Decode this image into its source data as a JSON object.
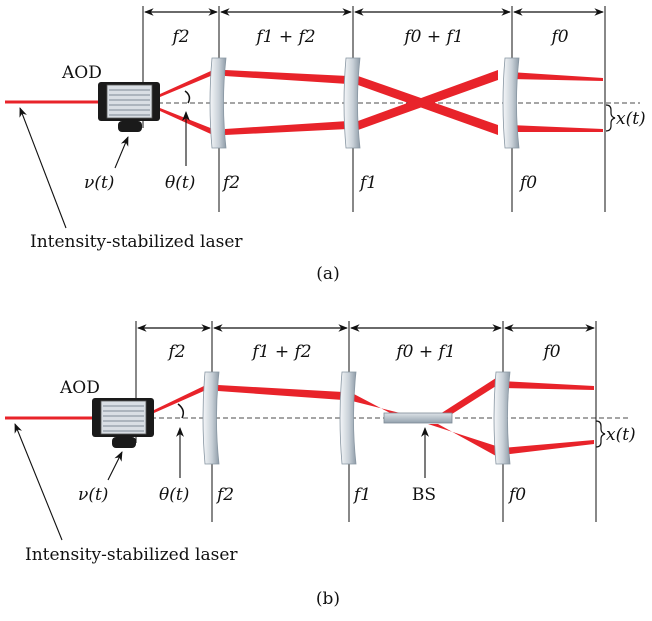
{
  "panels": [
    {
      "id": "a",
      "caption": "(a)",
      "aod_label": "AOD",
      "laser_label": "Intensity-stabilized laser",
      "frequency_label": "ν(t)",
      "angle_label": "θ(t)",
      "displacement_label": "x(t)",
      "spacing_labels": [
        "f2",
        "f1 + f2",
        "f0 + f1",
        "f0"
      ],
      "lens_labels": [
        "f2",
        "f1",
        "f0"
      ]
    },
    {
      "id": "b",
      "caption": "(b)",
      "aod_label": "AOD",
      "laser_label": "Intensity-stabilized laser",
      "frequency_label": "ν(t)",
      "angle_label": "θ(t)",
      "displacement_label": "x(t)",
      "spacing_labels": [
        "f2",
        "f1 + f2",
        "f0 + f1",
        "f0"
      ],
      "lens_labels": [
        "f2",
        "f1",
        "f0"
      ],
      "beamsplitter_label": "BS"
    }
  ],
  "colors": {
    "beam": "#e8232a",
    "lens_light": "#f4f6f8",
    "lens_dark": "#9aa7b2",
    "line": "#111111",
    "aod_body": "#1a1a1a",
    "aod_crystal": "#d9dee4"
  }
}
